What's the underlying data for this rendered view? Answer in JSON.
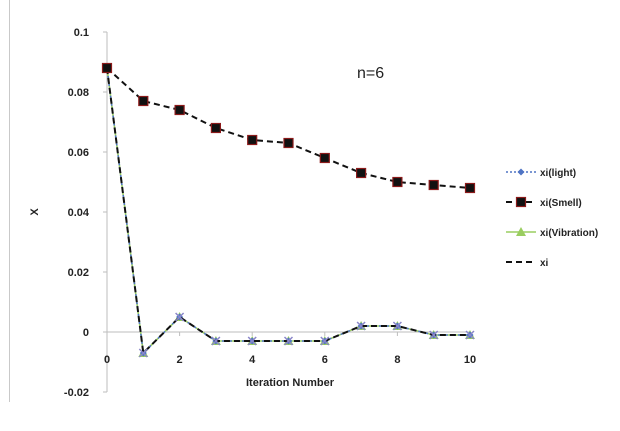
{
  "chart_data": {
    "type": "line",
    "xlabel": "Iteration Number",
    "ylabel": "X",
    "annotation": "n=6",
    "xlim": [
      0,
      10
    ],
    "ylim": [
      -0.02,
      0.1
    ],
    "x_ticks": [
      "0",
      "2",
      "4",
      "6",
      "8",
      "10"
    ],
    "y_ticks": [
      "0.1",
      "0.08",
      "0.06",
      "0.04",
      "0.02",
      "0",
      "-0.02"
    ],
    "grid": false,
    "legend_position": "right",
    "x": [
      0,
      1,
      2,
      3,
      4,
      5,
      6,
      7,
      8,
      9,
      10
    ],
    "series": [
      {
        "name": "xi(light)",
        "color": "#4f74c4",
        "marker": "diamond",
        "dash": "dotted",
        "values": [
          0.088,
          -0.007,
          0.005,
          -0.003,
          -0.003,
          -0.003,
          -0.003,
          0.002,
          0.002,
          -0.001,
          -0.001
        ]
      },
      {
        "name": "xi(Smell)",
        "color": "#111111",
        "marker": "square",
        "marker_color": "#8b1a1a",
        "dash": "dashed",
        "values": [
          0.088,
          0.077,
          0.074,
          0.068,
          0.064,
          0.063,
          0.058,
          0.053,
          0.05,
          0.049,
          0.048
        ]
      },
      {
        "name": "xi(Vibration)",
        "color": "#9acd60",
        "marker": "triangle",
        "dash": "solid",
        "values": [
          0.088,
          -0.007,
          0.005,
          -0.003,
          -0.003,
          -0.003,
          -0.003,
          0.002,
          0.002,
          -0.001,
          -0.001
        ]
      },
      {
        "name": "xi",
        "color": "#111111",
        "marker": "none",
        "dash": "dashed",
        "values": [
          0.088,
          -0.007,
          0.005,
          -0.003,
          -0.003,
          -0.003,
          -0.003,
          0.002,
          0.002,
          -0.001,
          -0.001
        ]
      }
    ]
  }
}
